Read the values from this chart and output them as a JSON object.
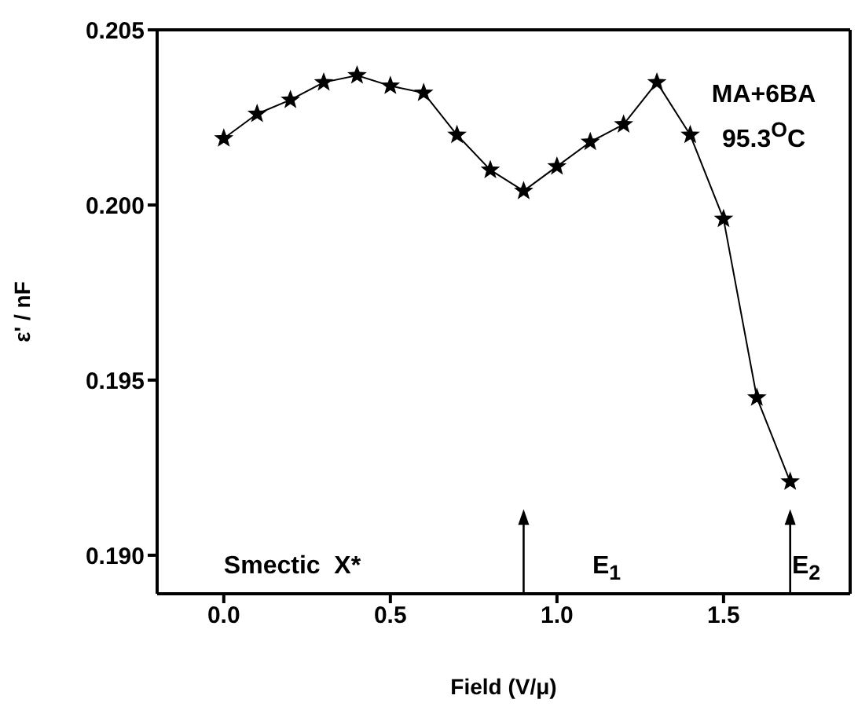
{
  "chart_data": {
    "type": "line",
    "xlabel": "Field (V/μ)",
    "ylabel": "ε' / nF",
    "x": [
      0,
      0.1,
      0.2,
      0.3,
      0.4,
      0.5,
      0.6,
      0.7,
      0.8,
      0.9,
      1.0,
      1.1,
      1.2,
      1.3,
      1.4,
      1.5,
      1.6,
      1.7
    ],
    "series": [
      {
        "color": "#000000",
        "values": [
          0.2019,
          0.2026,
          0.203,
          0.2035,
          0.2037,
          0.2034,
          0.2032,
          0.202,
          0.201,
          0.2004,
          0.2011,
          0.2018,
          0.2023,
          0.2035,
          0.202,
          0.1996,
          0.1945,
          0.1921
        ]
      }
    ],
    "xlim": [
      -0.2,
      1.88
    ],
    "xticks": [
      {
        "value": 0,
        "label": "0.0"
      },
      0.5,
      {
        "value": 1,
        "label": "1.0"
      },
      1.5
    ],
    "ylim": [
      0.1889,
      0.205
    ],
    "yticks": [
      {
        "value": 0.19,
        "label": "0.190"
      },
      0.195,
      {
        "value": 0.2,
        "label": "0.200"
      },
      0.205
    ],
    "ref_lines": [
      {
        "axis": "x",
        "value": 0.9
      },
      {
        "axis": "x",
        "value": 1.7
      }
    ],
    "annotations": [
      "MA+6BA",
      "95.3$^{O}$C",
      "Smectic  X*",
      "E$_{1}$",
      "E$_{2}$"
    ],
    "marker": "star",
    "line_style": "solid",
    "grid": false,
    "legend": false
  }
}
